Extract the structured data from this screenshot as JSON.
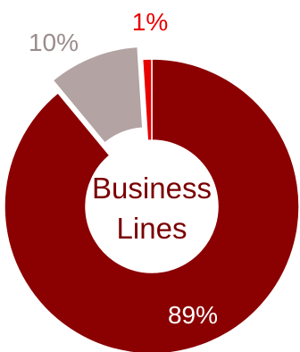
{
  "chart_data": {
    "type": "pie",
    "variant": "donut",
    "center_text": [
      "Business",
      "Lines"
    ],
    "slices": [
      {
        "label": "89%",
        "value": 89,
        "color": "#8b0000",
        "label_color": "#ffffff",
        "exploded": false
      },
      {
        "label": "10%",
        "value": 10,
        "color": "#b3a3a3",
        "label_color": "#9a8c8c",
        "exploded": true
      },
      {
        "label": "1%",
        "value": 1,
        "color": "#e80000",
        "label_color": "#e80000",
        "exploded": false
      }
    ],
    "colors": {
      "center_text": "#7a0000"
    }
  }
}
